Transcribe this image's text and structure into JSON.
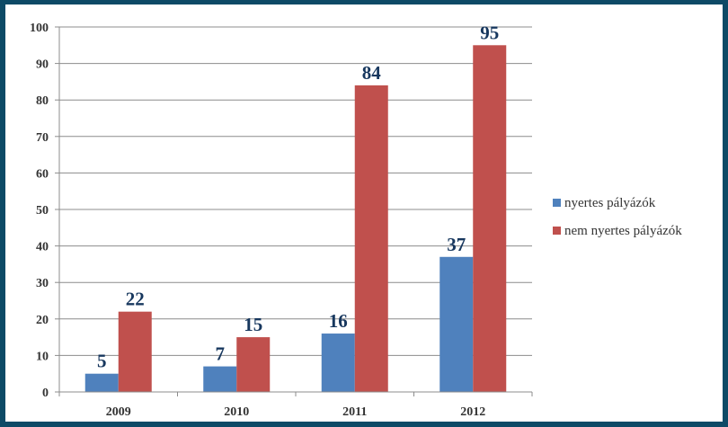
{
  "chart_data": {
    "type": "bar",
    "title": "",
    "xlabel": "",
    "ylabel": "",
    "categories": [
      "2009",
      "2010",
      "2011",
      "2012"
    ],
    "series": [
      {
        "name": "nyertes pályázók",
        "values": [
          5,
          7,
          16,
          37
        ],
        "color": "#4f81bd"
      },
      {
        "name": "nem nyertes pályázók",
        "values": [
          22,
          15,
          84,
          95
        ],
        "color": "#c0504d"
      }
    ],
    "ylim": [
      0,
      100
    ],
    "yticks": [
      0,
      10,
      20,
      30,
      40,
      50,
      60,
      70,
      80,
      90,
      100
    ],
    "grid": true,
    "legend": "right",
    "data_labels": true,
    "data_label_color": "#17375e"
  }
}
